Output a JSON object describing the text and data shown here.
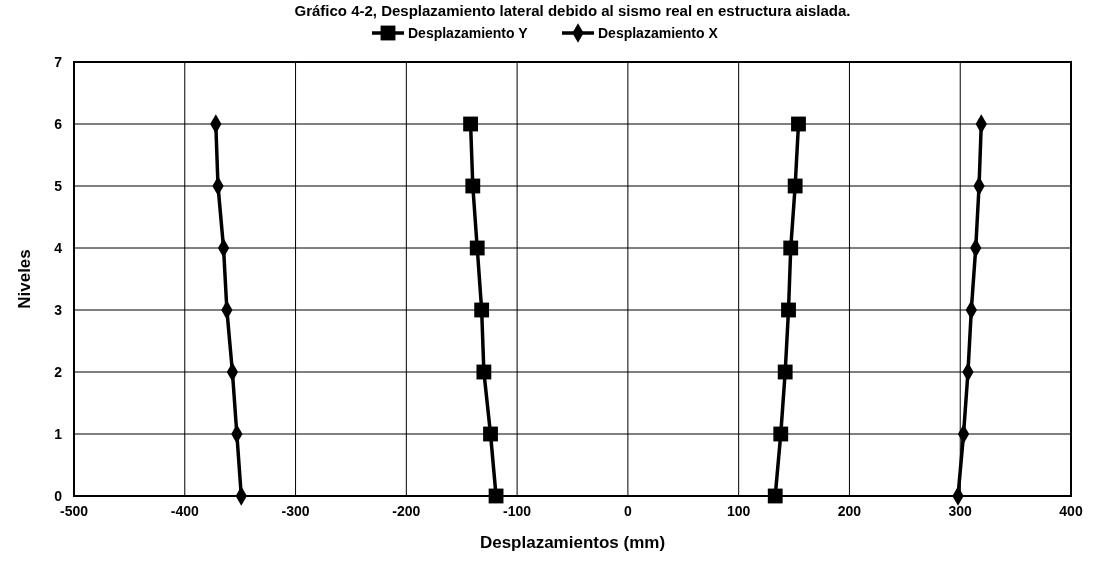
{
  "chart_data": {
    "type": "line",
    "title": "Gráfico 4-2, Desplazamiento lateral debido al sismo real en estructura aislada.",
    "xlabel": "Desplazamientos (mm)",
    "ylabel": "Niveles",
    "xlim": [
      -500,
      400
    ],
    "xticks": [
      -500,
      -400,
      -300,
      -200,
      -100,
      0,
      100,
      200,
      300,
      400
    ],
    "ylim": [
      0,
      7
    ],
    "yticks": [
      0,
      1,
      2,
      3,
      4,
      5,
      6,
      7
    ],
    "grid": true,
    "legend": "top",
    "line_style": "solid",
    "series": [
      {
        "name": "Desplazamiento Y",
        "color": "#000000",
        "marker": "square",
        "x": [
          -119,
          -124,
          -130,
          -132,
          -136,
          -140,
          -142
        ],
        "values": [
          0,
          1,
          2,
          3,
          4,
          5,
          6
        ]
      },
      {
        "name": "Desplazamiento X",
        "color": "#000000",
        "marker": "diamond",
        "x": [
          -349,
          -353,
          -357,
          -362,
          -365,
          -370,
          -372
        ],
        "values": [
          0,
          1,
          2,
          3,
          4,
          5,
          6
        ]
      },
      {
        "color": "#000000",
        "marker": "square",
        "x": [
          133,
          138,
          142,
          145,
          147,
          151,
          154
        ],
        "values": [
          0,
          1,
          2,
          3,
          4,
          5,
          6
        ]
      },
      {
        "color": "#000000",
        "marker": "diamond",
        "x": [
          298,
          303,
          307,
          310,
          314,
          317,
          319
        ],
        "values": [
          0,
          1,
          2,
          3,
          4,
          5,
          6
        ]
      }
    ]
  }
}
